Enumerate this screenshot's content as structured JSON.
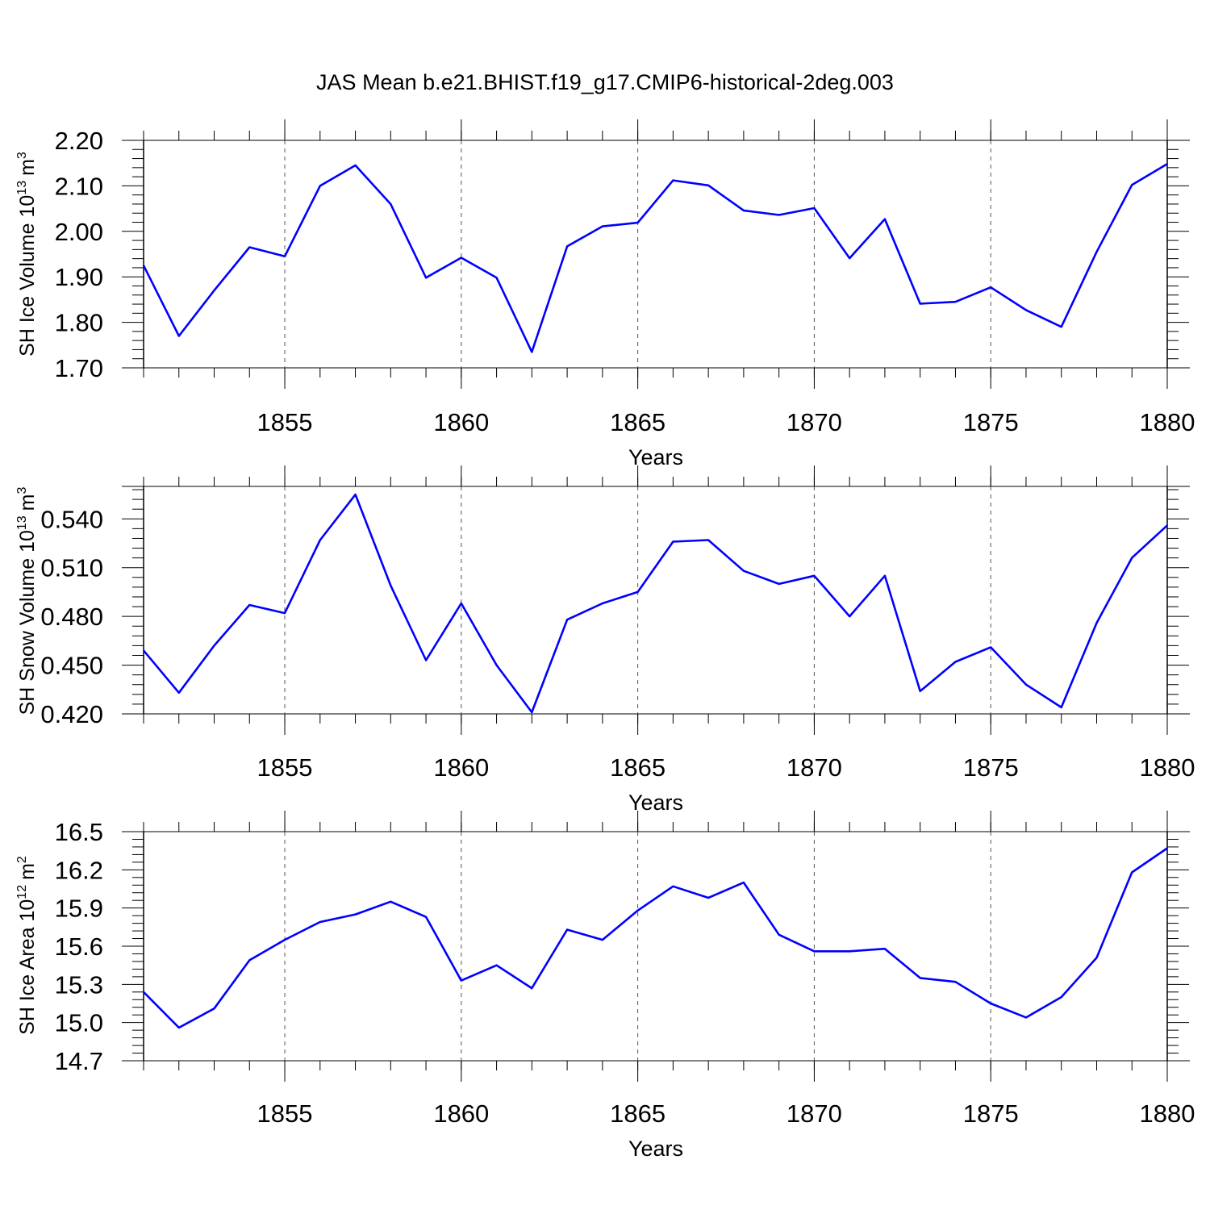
{
  "title": "JAS Mean b.e21.BHIST.f19_g17.CMIP6-historical-2deg.003",
  "line_color": "#0000ff",
  "chart_data": [
    {
      "type": "line",
      "ylabel": "SH Ice Volume 10",
      "ylabel_exp": "13",
      "ylabel_unit": "m",
      "ylabel_unit_exp": "3",
      "xlabel": "Years",
      "xlim": [
        1851,
        1880
      ],
      "ylim": [
        1.7,
        2.2
      ],
      "yticks": [
        1.7,
        1.8,
        1.9,
        2.0,
        2.1,
        2.2
      ],
      "ytick_labels": [
        "1.70",
        "1.80",
        "1.90",
        "2.00",
        "2.10",
        "2.20"
      ],
      "xticks": [
        1855,
        1860,
        1865,
        1870,
        1875,
        1880
      ],
      "xtick_labels": [
        "1855",
        "1860",
        "1865",
        "1870",
        "1875",
        "1880"
      ],
      "series": [
        {
          "x": [
            1851,
            1852,
            1853,
            1854,
            1855,
            1856,
            1857,
            1858,
            1859,
            1860,
            1861,
            1862,
            1863,
            1864,
            1865,
            1866,
            1867,
            1868,
            1869,
            1870,
            1871,
            1872,
            1873,
            1874,
            1875,
            1876,
            1877,
            1878,
            1879,
            1880
          ],
          "values": [
            1.925,
            1.77,
            1.87,
            1.965,
            1.945,
            2.1,
            2.145,
            2.06,
            1.898,
            1.942,
            1.898,
            1.735,
            1.967,
            2.011,
            2.019,
            2.112,
            2.101,
            2.046,
            2.036,
            2.051,
            1.941,
            2.027,
            1.841,
            1.845,
            1.877,
            1.827,
            1.79,
            1.955,
            2.102,
            2.148
          ]
        }
      ]
    },
    {
      "type": "line",
      "ylabel": "SH Snow Volume 10",
      "ylabel_exp": "13",
      "ylabel_unit": "m",
      "ylabel_unit_exp": "3",
      "xlabel": "Years",
      "xlim": [
        1851,
        1880
      ],
      "ylim": [
        0.42,
        0.56
      ],
      "yticks": [
        0.42,
        0.45,
        0.48,
        0.51,
        0.54
      ],
      "ytick_labels": [
        "0.420",
        "0.450",
        "0.480",
        "0.510",
        "0.540"
      ],
      "xticks": [
        1855,
        1860,
        1865,
        1870,
        1875,
        1880
      ],
      "xtick_labels": [
        "1855",
        "1860",
        "1865",
        "1870",
        "1875",
        "1880"
      ],
      "series": [
        {
          "x": [
            1851,
            1852,
            1853,
            1854,
            1855,
            1856,
            1857,
            1858,
            1859,
            1860,
            1861,
            1862,
            1863,
            1864,
            1865,
            1866,
            1867,
            1868,
            1869,
            1870,
            1871,
            1872,
            1873,
            1874,
            1875,
            1876,
            1877,
            1878,
            1879,
            1880
          ],
          "values": [
            0.459,
            0.433,
            0.462,
            0.487,
            0.482,
            0.527,
            0.555,
            0.499,
            0.453,
            0.488,
            0.45,
            0.421,
            0.478,
            0.488,
            0.495,
            0.526,
            0.527,
            0.508,
            0.5,
            0.505,
            0.48,
            0.505,
            0.434,
            0.452,
            0.461,
            0.438,
            0.424,
            0.476,
            0.516,
            0.536
          ]
        }
      ]
    },
    {
      "type": "line",
      "ylabel": "SH Ice Area 10",
      "ylabel_exp": "12",
      "ylabel_unit": "m",
      "ylabel_unit_exp": "2",
      "xlabel": "Years",
      "xlim": [
        1851,
        1880
      ],
      "ylim": [
        14.7,
        16.5
      ],
      "yticks": [
        14.7,
        15.0,
        15.3,
        15.6,
        15.9,
        16.2,
        16.5
      ],
      "ytick_labels": [
        "14.7",
        "15.0",
        "15.3",
        "15.6",
        "15.9",
        "16.2",
        "16.5"
      ],
      "xticks": [
        1855,
        1860,
        1865,
        1870,
        1875,
        1880
      ],
      "xtick_labels": [
        "1855",
        "1860",
        "1865",
        "1870",
        "1875",
        "1880"
      ],
      "series": [
        {
          "x": [
            1851,
            1852,
            1853,
            1854,
            1855,
            1856,
            1857,
            1858,
            1859,
            1860,
            1861,
            1862,
            1863,
            1864,
            1865,
            1866,
            1867,
            1868,
            1869,
            1870,
            1871,
            1872,
            1873,
            1874,
            1875,
            1876,
            1877,
            1878,
            1879,
            1880
          ],
          "values": [
            15.24,
            14.96,
            15.11,
            15.49,
            15.65,
            15.79,
            15.85,
            15.95,
            15.83,
            15.33,
            15.45,
            15.27,
            15.73,
            15.65,
            15.88,
            16.07,
            15.98,
            16.1,
            15.69,
            15.56,
            15.56,
            15.58,
            15.35,
            15.32,
            15.15,
            15.04,
            15.2,
            15.51,
            16.18,
            16.37
          ]
        }
      ]
    }
  ]
}
